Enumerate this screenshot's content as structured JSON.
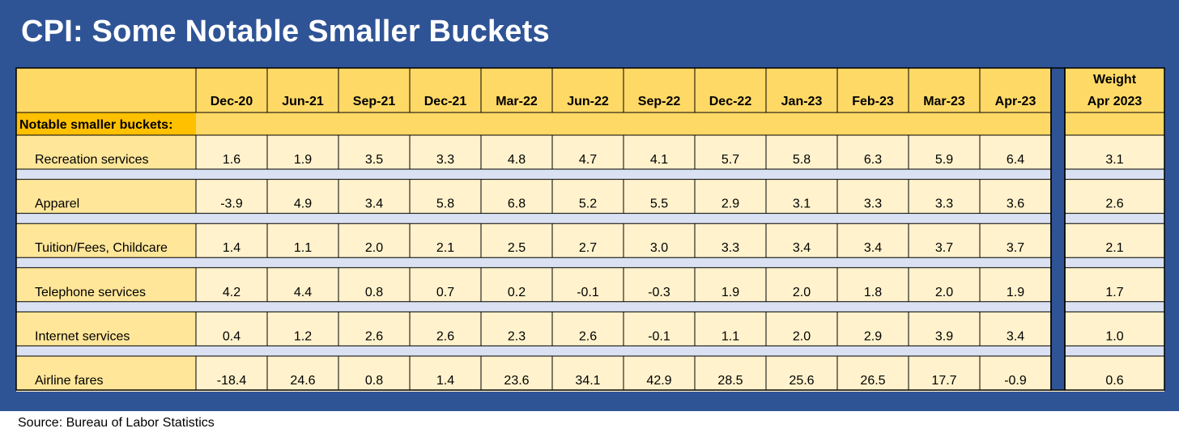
{
  "header": {
    "title": "CPI: Some Notable Smaller Buckets"
  },
  "footer": {
    "source": "Source: Bureau of Labor Statistics"
  },
  "colors": {
    "frame": "#2f5496",
    "header_fill": "#ffd966",
    "section_fill": "#ffc000",
    "label_fill": "#ffe699",
    "value_fill": "#fff2cc",
    "gap_fill": "#d9e1f2"
  },
  "chart_data": {
    "type": "table",
    "section_label": "Notable smaller buckets:",
    "columns": [
      "Dec-20",
      "Jun-21",
      "Sep-21",
      "Dec-21",
      "Mar-22",
      "Jun-22",
      "Sep-22",
      "Dec-22",
      "Jan-23",
      "Feb-23",
      "Mar-23",
      "Apr-23"
    ],
    "weight_header": [
      "Weight",
      "Apr 2023"
    ],
    "rows": [
      {
        "label": "Recreation services",
        "values": [
          "1.6",
          "1.9",
          "3.5",
          "3.3",
          "4.8",
          "4.7",
          "4.1",
          "5.7",
          "5.8",
          "6.3",
          "5.9",
          "6.4"
        ],
        "weight": "3.1"
      },
      {
        "label": "Apparel",
        "values": [
          "-3.9",
          "4.9",
          "3.4",
          "5.8",
          "6.8",
          "5.2",
          "5.5",
          "2.9",
          "3.1",
          "3.3",
          "3.3",
          "3.6"
        ],
        "weight": "2.6"
      },
      {
        "label": "Tuition/Fees, Childcare",
        "values": [
          "1.4",
          "1.1",
          "2.0",
          "2.1",
          "2.5",
          "2.7",
          "3.0",
          "3.3",
          "3.4",
          "3.4",
          "3.7",
          "3.7"
        ],
        "weight": "2.1"
      },
      {
        "label": "Telephone services",
        "values": [
          "4.2",
          "4.4",
          "0.8",
          "0.7",
          "0.2",
          "-0.1",
          "-0.3",
          "1.9",
          "2.0",
          "1.8",
          "2.0",
          "1.9"
        ],
        "weight": "1.7"
      },
      {
        "label": "Internet services",
        "values": [
          "0.4",
          "1.2",
          "2.6",
          "2.6",
          "2.3",
          "2.6",
          "-0.1",
          "1.1",
          "2.0",
          "2.9",
          "3.9",
          "3.4"
        ],
        "weight": "1.0"
      },
      {
        "label": "Airline fares",
        "values": [
          "-18.4",
          "24.6",
          "0.8",
          "1.4",
          "23.6",
          "34.1",
          "42.9",
          "28.5",
          "25.6",
          "26.5",
          "17.7",
          "-0.9"
        ],
        "weight": "0.6"
      }
    ]
  }
}
